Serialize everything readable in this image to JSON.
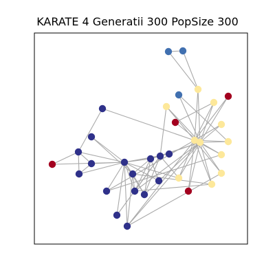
{
  "title": "KARATE 4 Generatii 300 PopSize 300",
  "colors": {
    "dark_blue": "#2f318a",
    "steel_blue": "#4170b0",
    "light_yellow": "#fde89a",
    "crimson": "#a3001f",
    "edge": "#a9a9a9"
  },
  "graph": {
    "nodes": [
      {
        "id": 0,
        "c": "dark_blue"
      },
      {
        "id": 1,
        "c": "dark_blue"
      },
      {
        "id": 2,
        "c": "dark_blue"
      },
      {
        "id": 3,
        "c": "dark_blue"
      },
      {
        "id": 4,
        "c": "dark_blue"
      },
      {
        "id": 5,
        "c": "dark_blue"
      },
      {
        "id": 6,
        "c": "dark_blue"
      },
      {
        "id": 7,
        "c": "dark_blue"
      },
      {
        "id": 8,
        "c": "dark_blue"
      },
      {
        "id": 9,
        "c": "dark_blue"
      },
      {
        "id": 10,
        "c": "dark_blue"
      },
      {
        "id": 11,
        "c": "dark_blue"
      },
      {
        "id": 12,
        "c": "dark_blue"
      },
      {
        "id": 13,
        "c": "dark_blue"
      },
      {
        "id": 14,
        "c": "dark_blue"
      },
      {
        "id": 15,
        "c": "dark_blue"
      },
      {
        "id": 16,
        "c": "crimson"
      },
      {
        "id": 17,
        "c": "steel_blue"
      },
      {
        "id": 18,
        "c": "steel_blue"
      },
      {
        "id": 19,
        "c": "steel_blue"
      },
      {
        "id": 20,
        "c": "light_yellow"
      },
      {
        "id": 21,
        "c": "light_yellow"
      },
      {
        "id": 22,
        "c": "light_yellow"
      },
      {
        "id": 23,
        "c": "crimson"
      },
      {
        "id": 24,
        "c": "crimson"
      },
      {
        "id": 25,
        "c": "light_yellow"
      },
      {
        "id": 26,
        "c": "light_yellow"
      },
      {
        "id": 27,
        "c": "light_yellow"
      },
      {
        "id": 28,
        "c": "light_yellow"
      },
      {
        "id": 29,
        "c": "light_yellow"
      },
      {
        "id": 30,
        "c": "light_yellow"
      },
      {
        "id": 31,
        "c": "light_yellow"
      },
      {
        "id": 32,
        "c": "light_yellow"
      },
      {
        "id": 33,
        "c": "crimson"
      }
    ],
    "edges": [
      [
        0,
        1
      ],
      [
        0,
        2
      ],
      [
        0,
        3
      ],
      [
        0,
        4
      ],
      [
        0,
        5
      ],
      [
        0,
        6
      ],
      [
        0,
        7
      ],
      [
        0,
        8
      ],
      [
        0,
        9
      ],
      [
        0,
        10
      ],
      [
        0,
        11
      ],
      [
        0,
        12
      ],
      [
        0,
        13
      ],
      [
        0,
        15
      ],
      [
        0,
        16
      ],
      [
        0,
        31
      ],
      [
        1,
        2
      ],
      [
        1,
        3
      ],
      [
        1,
        4
      ],
      [
        1,
        5
      ],
      [
        1,
        6
      ],
      [
        1,
        26
      ],
      [
        2,
        4
      ],
      [
        2,
        5
      ],
      [
        2,
        8
      ],
      [
        2,
        31
      ],
      [
        2,
        32
      ],
      [
        2,
        26
      ],
      [
        3,
        4
      ],
      [
        3,
        5
      ],
      [
        3,
        9
      ],
      [
        3,
        10
      ],
      [
        3,
        30
      ],
      [
        4,
        30
      ],
      [
        4,
        26
      ],
      [
        5,
        26
      ],
      [
        7,
        28
      ],
      [
        7,
        25
      ],
      [
        9,
        25
      ],
      [
        9,
        26
      ],
      [
        9,
        29
      ],
      [
        11,
        16
      ],
      [
        11,
        12
      ],
      [
        11,
        13
      ],
      [
        11,
        14
      ],
      [
        12,
        13
      ],
      [
        14,
        26
      ],
      [
        17,
        18
      ],
      [
        17,
        20
      ],
      [
        18,
        20
      ],
      [
        19,
        26
      ],
      [
        19,
        27
      ],
      [
        20,
        25
      ],
      [
        20,
        26
      ],
      [
        21,
        26
      ],
      [
        21,
        25
      ],
      [
        21,
        24
      ],
      [
        22,
        25
      ],
      [
        22,
        26
      ],
      [
        23,
        25
      ],
      [
        23,
        26
      ],
      [
        24,
        26
      ],
      [
        25,
        27
      ],
      [
        25,
        28
      ],
      [
        25,
        29
      ],
      [
        25,
        30
      ],
      [
        25,
        31
      ],
      [
        25,
        32
      ],
      [
        26,
        27
      ],
      [
        26,
        28
      ],
      [
        26,
        29
      ],
      [
        26,
        30
      ],
      [
        26,
        31
      ],
      [
        26,
        32
      ],
      [
        26,
        33
      ],
      [
        25,
        33
      ]
    ]
  }
}
